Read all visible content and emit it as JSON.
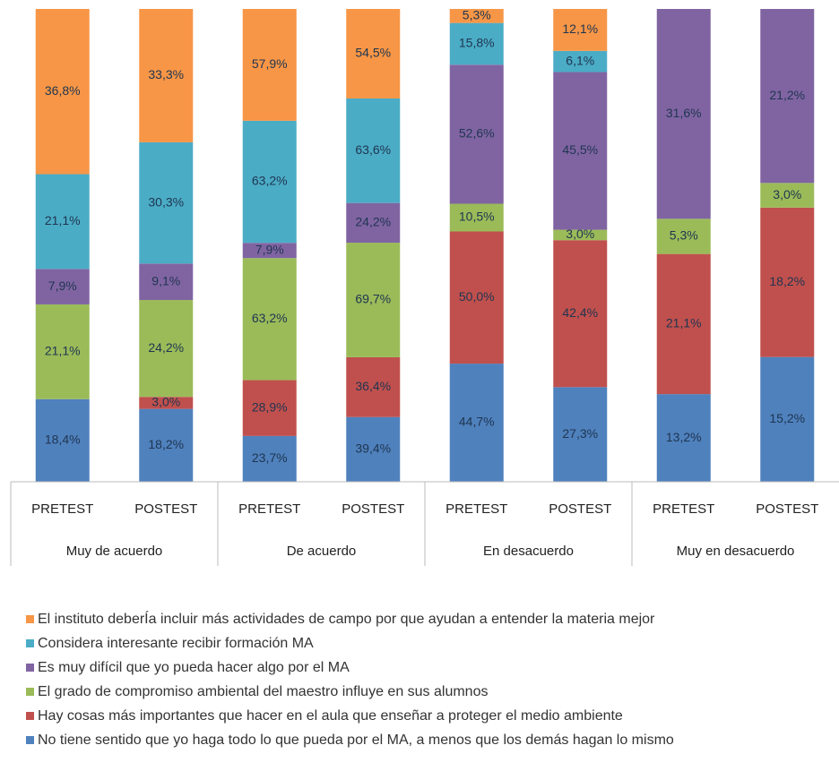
{
  "chart_data": {
    "type": "stacked_bar_100",
    "categories": [
      "PRETEST",
      "POSTEST",
      "PRETEST",
      "POSTEST",
      "PRETEST",
      "POSTEST",
      "PRETEST",
      "POSTEST"
    ],
    "groups": [
      "Muy de acuerdo",
      "De acuerdo",
      "En desacuerdo",
      "Muy en desacuerdo"
    ],
    "series": [
      {
        "name": "No tiene sentido que yo haga todo lo que pueda por el MA, a menos que los demás hagan lo mismo",
        "color": "#4f81bd",
        "values": [
          18.4,
          18.2,
          23.7,
          39.4,
          44.7,
          27.3,
          13.2,
          15.2
        ],
        "value_labels": [
          "18,4%",
          "18,2%",
          "23,7%",
          "39,4%",
          "44,7%",
          "27,3%",
          "13,2%",
          "15,2%"
        ]
      },
      {
        "name": "Hay cosas más importantes que hacer en el aula que enseñar a proteger el medio ambiente",
        "color": "#c0504d",
        "values": [
          null,
          3.0,
          28.9,
          36.4,
          50.0,
          42.4,
          21.1,
          18.2
        ],
        "value_labels": [
          null,
          "3,0%",
          "28,9%",
          "36,4%",
          "50,0%",
          "42,4%",
          "21,1%",
          "18,2%"
        ]
      },
      {
        "name": "El grado de compromiso ambiental del maestro influye en sus alumnos",
        "color": "#9bbb59",
        "values": [
          21.1,
          24.2,
          63.2,
          69.7,
          10.5,
          3.0,
          5.3,
          3.0
        ],
        "value_labels": [
          "21,1%",
          "24,2%",
          "63,2%",
          "69,7%",
          "10,5%",
          "3,0%",
          "5,3%",
          "3,0%"
        ]
      },
      {
        "name": "Es muy difícil que yo pueda hacer algo por el MA",
        "color": "#8064a2",
        "values": [
          7.9,
          9.1,
          7.9,
          24.2,
          52.6,
          45.5,
          31.6,
          21.2
        ],
        "value_labels": [
          "7,9%",
          "9,1%",
          "7,9%",
          "24,2%",
          "52,6%",
          "45,5%",
          "31,6%",
          "21,2%"
        ]
      },
      {
        "name": "Considera interesante recibir formación MA",
        "color": "#4bacc6",
        "values": [
          21.1,
          30.3,
          63.2,
          63.6,
          15.8,
          6.1,
          null,
          null
        ],
        "value_labels": [
          "21,1%",
          "30,3%",
          "63,2%",
          "63,6%",
          "15,8%",
          "6,1%",
          null,
          null
        ]
      },
      {
        "name": "El instituto deberÍa incluir más actividades de campo por que ayudan a entender la materia mejor",
        "color": "#f79646",
        "values": [
          36.8,
          33.3,
          57.9,
          54.5,
          5.3,
          12.1,
          null,
          null
        ],
        "value_labels": [
          "36,8%",
          "33,3%",
          "57,9%",
          "54,5%",
          "5,3%",
          "12,1%",
          null,
          null
        ]
      }
    ]
  }
}
